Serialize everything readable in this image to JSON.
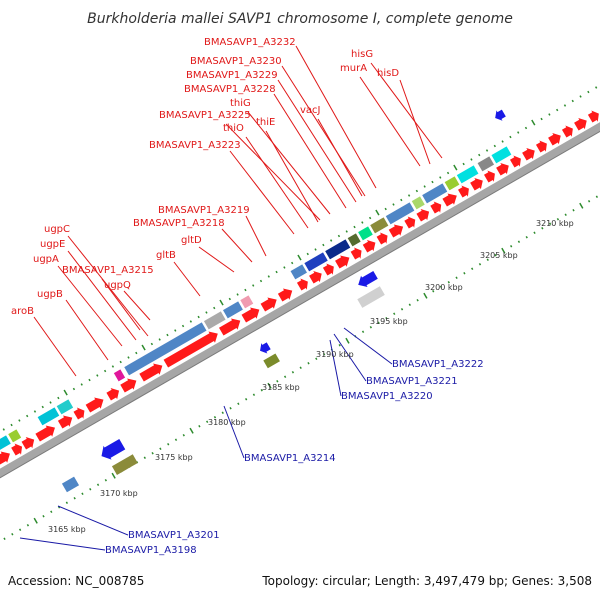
{
  "title": "Burkholderia mallei SAVP1 chromosome I, complete genome",
  "footer": {
    "accession": "Accession: NC_008785",
    "topology": "Topology: circular; Length: 3,497,479 bp; Genes: 3,508"
  },
  "colors": {
    "forward_gene": "#ff1a1a",
    "reverse_gene": "#1a1ae6",
    "backbone": "#a6a6a6",
    "ticks": "#2e8b2e",
    "red_label": "#e01818",
    "blue_label": "#1a1aa6"
  },
  "kbp_labels": [
    "3165 kbp",
    "3170 kbp",
    "3175 kbp",
    "3180 kbp",
    "3185 kbp",
    "3190 kbp",
    "3195 kbp",
    "3200 kbp",
    "3205 kbp",
    "3210 kbp"
  ],
  "red_labels": [
    "BMASAVP1_A3232",
    "BMASAVP1_A3230",
    "BMASAVP1_A3229",
    "BMASAVP1_A3228",
    "thiG",
    "BMASAVP1_A3225",
    "thiE",
    "thiO",
    "BMASAVP1_A3223",
    "vacJ",
    "hisG",
    "murA",
    "hisD",
    "BMASAVP1_A3219",
    "BMASAVP1_A3218",
    "gltD",
    "gltB",
    "ugpC",
    "ugpE",
    "ugpA",
    "BMASAVP1_A3215",
    "ugpQ",
    "ugpB",
    "aroB"
  ],
  "blue_labels": [
    "BMASAVP1_A3222",
    "BMASAVP1_A3221",
    "BMASAVP1_A3220",
    "BMASAVP1_A3214",
    "BMASAVP1_A3201",
    "BMASAVP1_A3198"
  ]
}
